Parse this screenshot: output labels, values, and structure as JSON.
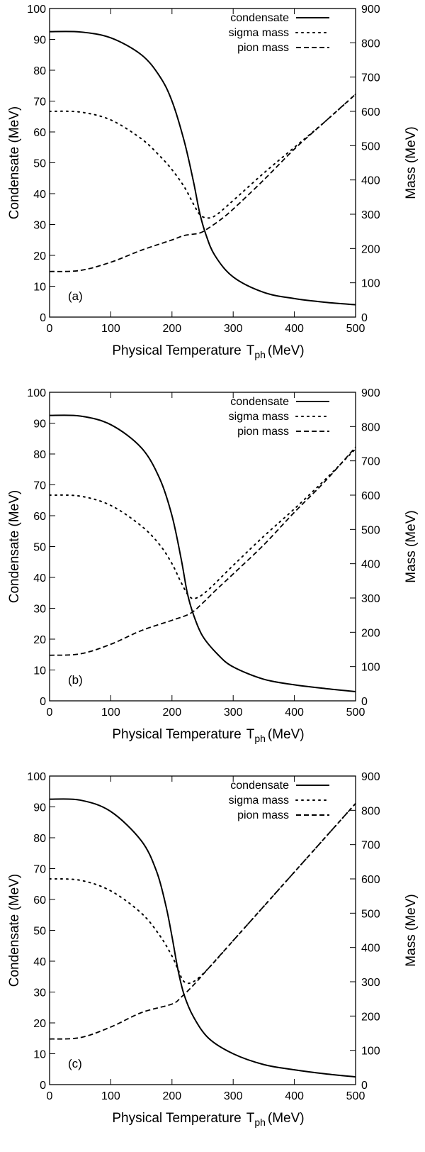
{
  "chart_data": [
    {
      "type": "line",
      "panel_label": "(a)",
      "xlabel": "Physical Temperature",
      "xlabel_symbol": "T",
      "xlabel_sub": "ph",
      "xlabel_unit": "(MeV)",
      "ylabel_left": "Condensate (MeV)",
      "ylabel_right": "Mass (MeV)",
      "xlim": [
        0,
        500
      ],
      "ylim_left": [
        0,
        100
      ],
      "ylim_right": [
        0,
        900
      ],
      "x_ticks": [
        "0",
        "100",
        "200",
        "300",
        "400",
        "500"
      ],
      "y_left_ticks": [
        "0",
        "10",
        "20",
        "30",
        "40",
        "50",
        "60",
        "70",
        "80",
        "90",
        "100"
      ],
      "y_right_ticks": [
        "0",
        "100",
        "200",
        "300",
        "400",
        "500",
        "600",
        "700",
        "800",
        "900"
      ],
      "legend_position": "top-right",
      "series": [
        {
          "name": "condensate",
          "axis": "left",
          "style": "solid",
          "x": [
            0,
            50,
            100,
            150,
            180,
            200,
            220,
            235,
            245,
            255,
            270,
            300,
            350,
            400,
            450,
            500
          ],
          "y": [
            92.5,
            92.4,
            90.5,
            85,
            78,
            70,
            57,
            44,
            34,
            27,
            20,
            13,
            8,
            6,
            4.8,
            4
          ]
        },
        {
          "name": "sigma mass",
          "axis": "right",
          "style": "dotted",
          "x": [
            0,
            50,
            100,
            150,
            180,
            200,
            220,
            235,
            245,
            255,
            270,
            300,
            350,
            400,
            450,
            500
          ],
          "y": [
            600,
            598,
            575,
            520,
            470,
            430,
            380,
            330,
            300,
            290,
            295,
            340,
            420,
            495,
            570,
            650
          ]
        },
        {
          "name": "pion mass",
          "axis": "right",
          "style": "dashed",
          "x": [
            0,
            50,
            100,
            150,
            200,
            220,
            245,
            260,
            280,
            300,
            350,
            400,
            450,
            500
          ],
          "y": [
            133,
            136,
            160,
            195,
            225,
            238,
            245,
            260,
            285,
            315,
            400,
            490,
            570,
            650
          ]
        }
      ]
    },
    {
      "type": "line",
      "panel_label": "(b)",
      "xlabel": "Physical Temperature",
      "xlabel_symbol": "T",
      "xlabel_sub": "ph",
      "xlabel_unit": "(MeV)",
      "ylabel_left": "Condensate (MeV)",
      "ylabel_right": "Mass (MeV)",
      "xlim": [
        0,
        500
      ],
      "ylim_left": [
        0,
        100
      ],
      "ylim_right": [
        0,
        900
      ],
      "x_ticks": [
        "0",
        "100",
        "200",
        "300",
        "400",
        "500"
      ],
      "y_left_ticks": [
        "0",
        "10",
        "20",
        "30",
        "40",
        "50",
        "60",
        "70",
        "80",
        "90",
        "100"
      ],
      "y_right_ticks": [
        "0",
        "100",
        "200",
        "300",
        "400",
        "500",
        "600",
        "700",
        "800",
        "900"
      ],
      "legend_position": "top-right",
      "series": [
        {
          "name": "condensate",
          "axis": "left",
          "style": "solid",
          "x": [
            0,
            50,
            100,
            150,
            180,
            200,
            215,
            225,
            235,
            250,
            275,
            300,
            350,
            400,
            450,
            500
          ],
          "y": [
            92.5,
            92.3,
            89.5,
            82,
            72,
            60,
            46,
            35,
            28,
            21,
            15,
            11,
            7,
            5.2,
            4,
            3
          ]
        },
        {
          "name": "sigma mass",
          "axis": "right",
          "style": "dotted",
          "x": [
            0,
            50,
            100,
            150,
            180,
            200,
            215,
            228,
            240,
            260,
            300,
            350,
            400,
            450,
            500
          ],
          "y": [
            600,
            597,
            570,
            510,
            455,
            400,
            345,
            305,
            300,
            325,
            395,
            480,
            560,
            645,
            735
          ]
        },
        {
          "name": "pion mass",
          "axis": "right",
          "style": "dashed",
          "x": [
            0,
            50,
            100,
            150,
            200,
            230,
            250,
            270,
            300,
            350,
            400,
            450,
            500
          ],
          "y": [
            133,
            137,
            165,
            205,
            235,
            255,
            285,
            320,
            370,
            455,
            550,
            640,
            740
          ]
        }
      ]
    },
    {
      "type": "line",
      "panel_label": "(c)",
      "xlabel": "Physical Temperature",
      "xlabel_symbol": "T",
      "xlabel_sub": "ph",
      "xlabel_unit": "(MeV)",
      "ylabel_left": "Condensate (MeV)",
      "ylabel_right": "Mass (MeV)",
      "xlim": [
        0,
        500
      ],
      "ylim_left": [
        0,
        100
      ],
      "ylim_right": [
        0,
        900
      ],
      "x_ticks": [
        "0",
        "100",
        "200",
        "300",
        "400",
        "500"
      ],
      "y_left_ticks": [
        "0",
        "10",
        "20",
        "30",
        "40",
        "50",
        "60",
        "70",
        "80",
        "90",
        "100"
      ],
      "y_right_ticks": [
        "0",
        "100",
        "200",
        "300",
        "400",
        "500",
        "600",
        "700",
        "800",
        "900"
      ],
      "legend_position": "top-right",
      "series": [
        {
          "name": "condensate",
          "axis": "left",
          "style": "solid",
          "x": [
            0,
            50,
            100,
            150,
            175,
            190,
            200,
            210,
            220,
            235,
            260,
            300,
            350,
            400,
            450,
            500
          ],
          "y": [
            92.5,
            92.2,
            88.5,
            79,
            69,
            58,
            48,
            37,
            29,
            22,
            15,
            10,
            6.5,
            4.8,
            3.5,
            2.5
          ]
        },
        {
          "name": "sigma mass",
          "axis": "right",
          "style": "dotted",
          "x": [
            0,
            50,
            100,
            150,
            180,
            200,
            210,
            220,
            235,
            260,
            300,
            350,
            400,
            450,
            500
          ],
          "y": [
            600,
            596,
            565,
            500,
            435,
            375,
            335,
            300,
            300,
            340,
            420,
            520,
            620,
            720,
            820
          ]
        },
        {
          "name": "pion mass",
          "axis": "right",
          "style": "dashed",
          "x": [
            0,
            50,
            100,
            150,
            200,
            215,
            235,
            260,
            300,
            350,
            400,
            450,
            500
          ],
          "y": [
            133,
            137,
            168,
            210,
            235,
            255,
            290,
            340,
            420,
            520,
            620,
            720,
            820
          ]
        }
      ]
    }
  ]
}
